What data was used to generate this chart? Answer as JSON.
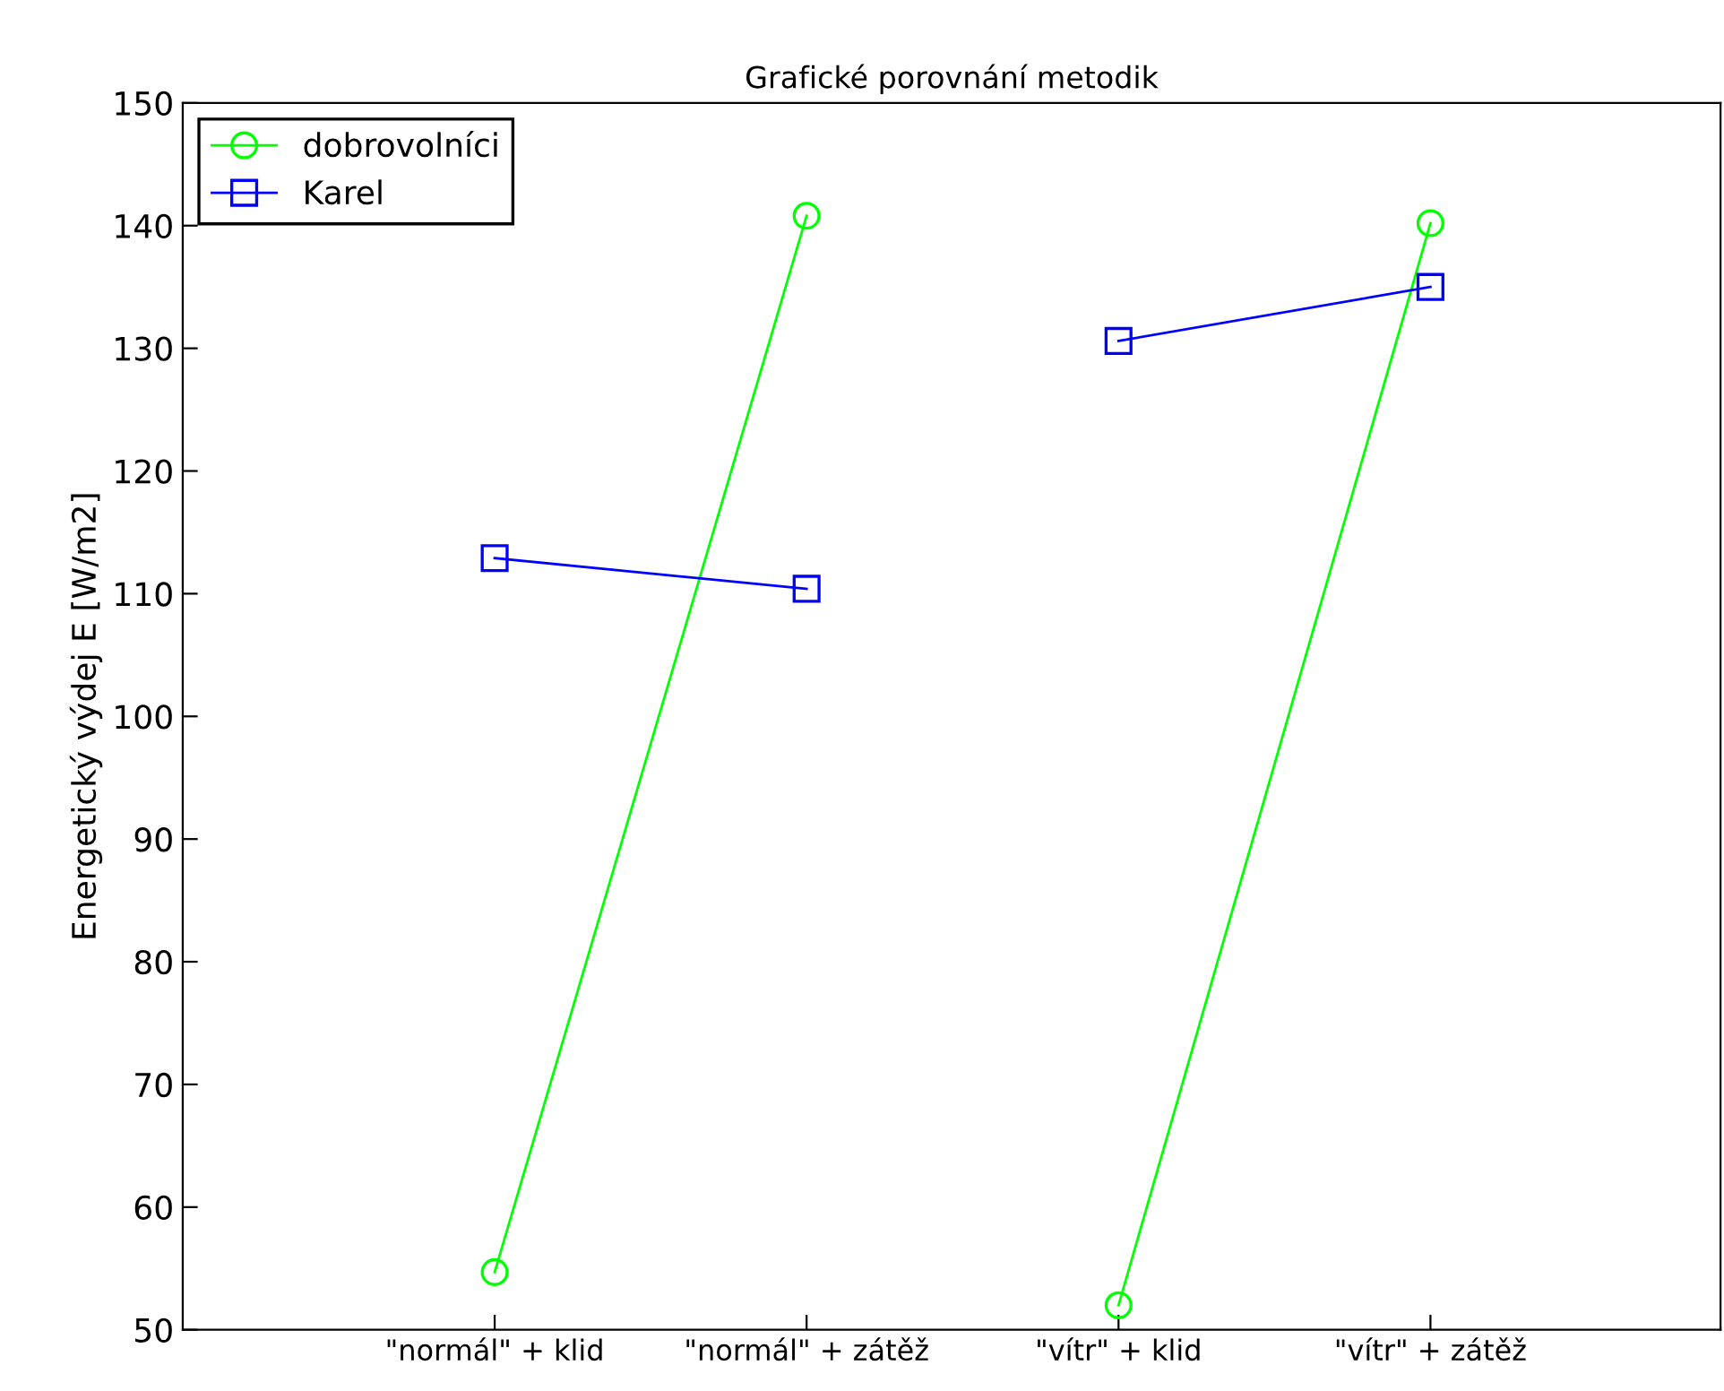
{
  "chart_data": {
    "type": "line",
    "title": "Grafické porovnání metodik",
    "ylabel": "Energetický výdej E [W/m2]",
    "categories": [
      "\"normál\" + klid",
      "\"normál\" + zátěž",
      "\"vítr\" + klid",
      "\"vítr\" + zátěž"
    ],
    "series": [
      {
        "name": "dobrovolníci",
        "color": "#00ff00",
        "marker": "circle",
        "values": [
          54.7,
          140.8,
          null,
          null
        ]
      },
      {
        "color": "#00ff00",
        "marker": "circle",
        "values": [
          null,
          null,
          52.0,
          140.2
        ]
      },
      {
        "name": "Karel",
        "color": "#0000ff",
        "marker": "square",
        "values": [
          112.9,
          110.4,
          null,
          null
        ]
      },
      {
        "color": "#0000ff",
        "marker": "square",
        "values": [
          null,
          null,
          130.6,
          135.0
        ]
      }
    ],
    "ylim": [
      50,
      150
    ],
    "yticks": [
      50,
      60,
      70,
      80,
      90,
      100,
      110,
      120,
      130,
      140,
      150
    ],
    "grid": false,
    "legend": "top left",
    "line_style": "solid"
  }
}
